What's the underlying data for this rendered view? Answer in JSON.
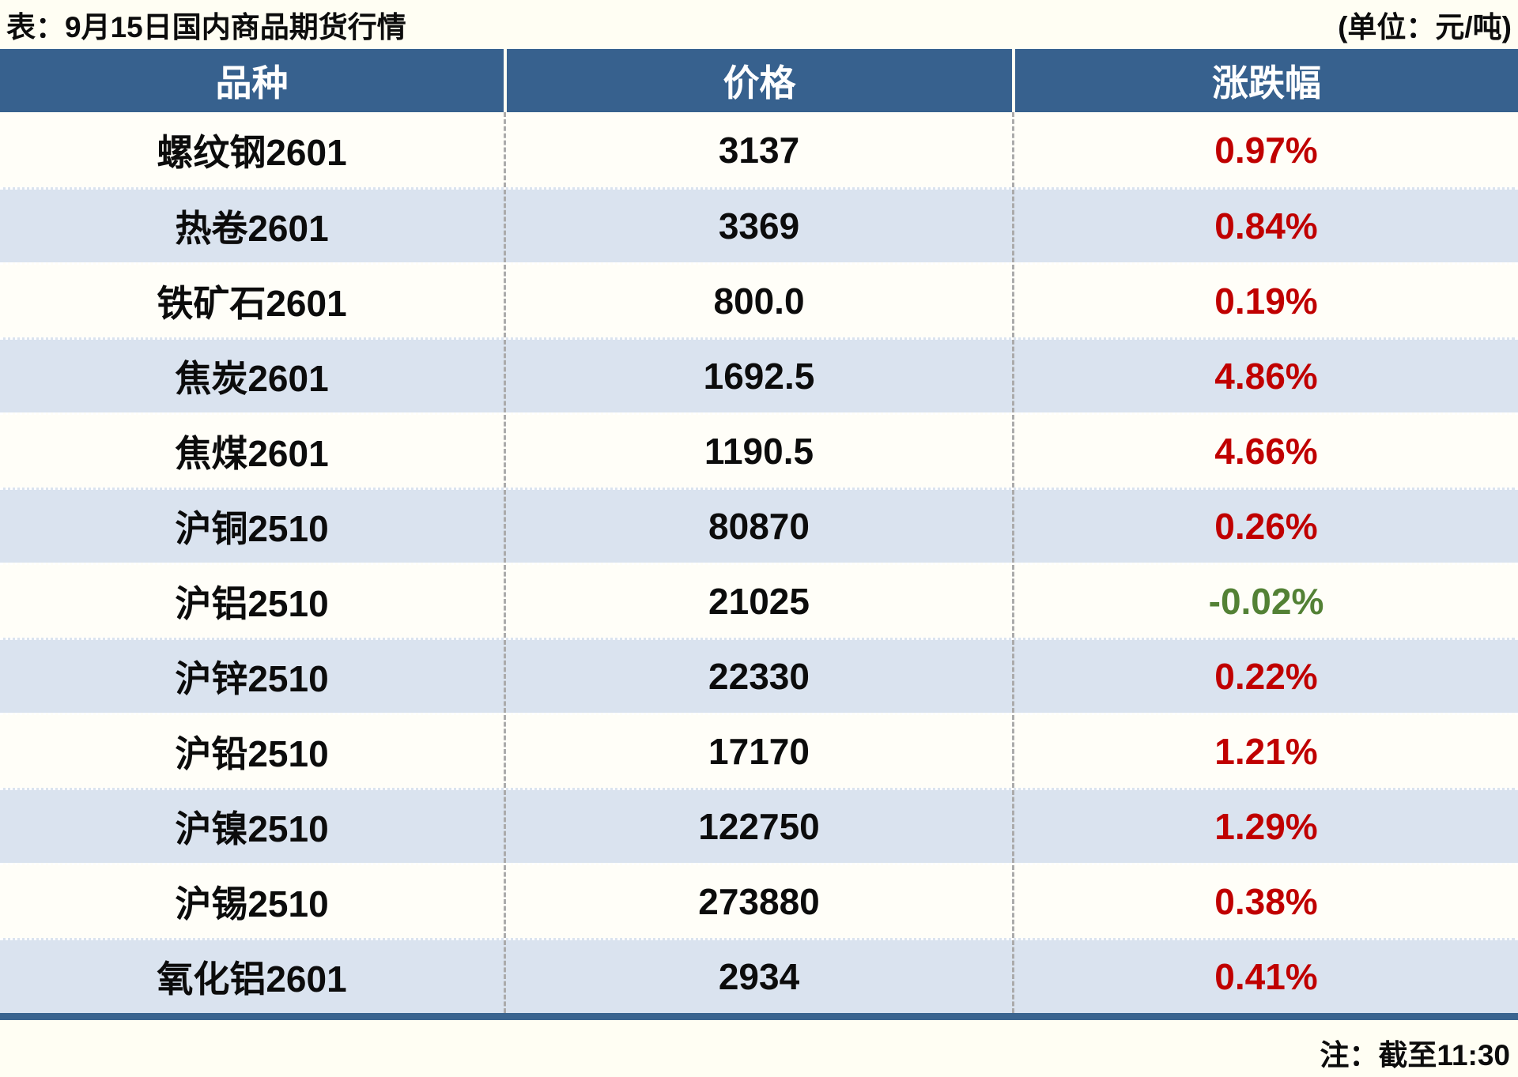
{
  "title": "表：9月15日国内商品期货行情",
  "unit_label": "(单位：元/吨)",
  "note": "注：截至11:30",
  "colors": {
    "up": "#C00000",
    "down": "#538135",
    "header_bg": "#37618E",
    "row_alt_bg": "#DAE3EF",
    "bottom_rule": "#3A648F"
  },
  "table": {
    "headers": [
      "品种",
      "价格",
      "涨跌幅"
    ],
    "rows": [
      {
        "name": "螺纹钢2601",
        "price": "3137",
        "change": "0.97%",
        "direction": "up"
      },
      {
        "name": "热卷2601",
        "price": "3369",
        "change": "0.84%",
        "direction": "up"
      },
      {
        "name": "铁矿石2601",
        "price": "800.0",
        "change": "0.19%",
        "direction": "up"
      },
      {
        "name": "焦炭2601",
        "price": "1692.5",
        "change": "4.86%",
        "direction": "up"
      },
      {
        "name": "焦煤2601",
        "price": "1190.5",
        "change": "4.66%",
        "direction": "up"
      },
      {
        "name": "沪铜2510",
        "price": "80870",
        "change": "0.26%",
        "direction": "up"
      },
      {
        "name": "沪铝2510",
        "price": "21025",
        "change": "-0.02%",
        "direction": "down"
      },
      {
        "name": "沪锌2510",
        "price": "22330",
        "change": "0.22%",
        "direction": "up"
      },
      {
        "name": "沪铅2510",
        "price": "17170",
        "change": "1.21%",
        "direction": "up"
      },
      {
        "name": "沪镍2510",
        "price": "122750",
        "change": "1.29%",
        "direction": "up"
      },
      {
        "name": "沪锡2510",
        "price": "273880",
        "change": "0.38%",
        "direction": "up"
      },
      {
        "name": "氧化铝2601",
        "price": "2934",
        "change": "0.41%",
        "direction": "up"
      }
    ]
  },
  "chart_data": {
    "type": "table",
    "title": "表：9月15日国内商品期货行情",
    "unit": "元/吨",
    "as_of": "截至11:30",
    "columns": [
      "品种",
      "价格",
      "涨跌幅"
    ],
    "rows": [
      [
        "螺纹钢2601",
        3137,
        "0.97%"
      ],
      [
        "热卷2601",
        3369,
        "0.84%"
      ],
      [
        "铁矿石2601",
        800.0,
        "0.19%"
      ],
      [
        "焦炭2601",
        1692.5,
        "4.86%"
      ],
      [
        "焦煤2601",
        1190.5,
        "4.66%"
      ],
      [
        "沪铜2510",
        80870,
        "0.26%"
      ],
      [
        "沪铝2510",
        21025,
        "-0.02%"
      ],
      [
        "沪锌2510",
        22330,
        "0.22%"
      ],
      [
        "沪铅2510",
        17170,
        "1.21%"
      ],
      [
        "沪镍2510",
        122750,
        "1.29%"
      ],
      [
        "沪锡2510",
        273880,
        "0.38%"
      ],
      [
        "氧化铝2601",
        2934,
        "0.41%"
      ]
    ]
  }
}
